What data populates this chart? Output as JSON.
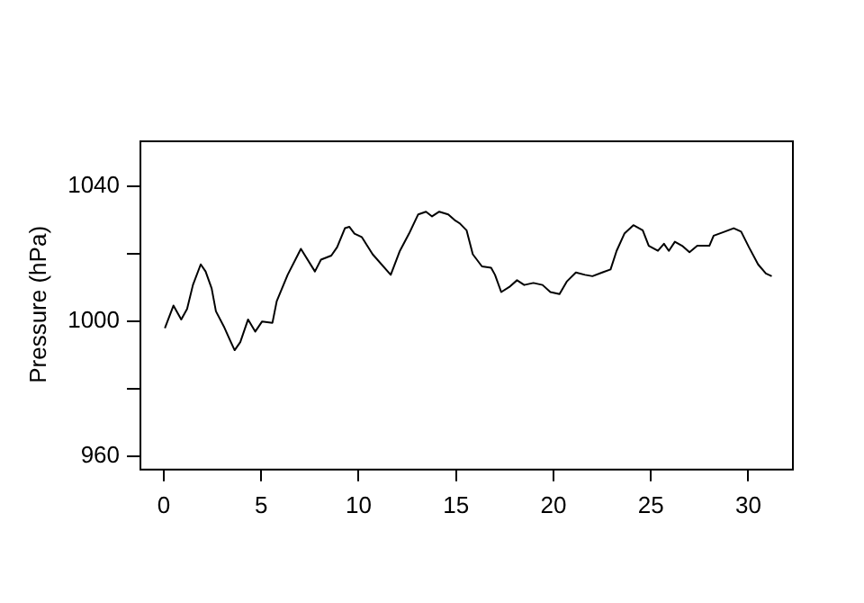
{
  "chart_data": {
    "type": "line",
    "ylabel": "Pressure (hPa)",
    "x": [
      0.06,
      0.5,
      0.9,
      1.2,
      1.5,
      1.9,
      2.15,
      2.46,
      2.68,
      3.08,
      3.4,
      3.64,
      3.93,
      4.33,
      4.7,
      5.05,
      5.58,
      5.8,
      6.36,
      7.04,
      7.76,
      8.07,
      8.6,
      8.9,
      9.3,
      9.53,
      9.79,
      10.16,
      10.72,
      11.65,
      12.12,
      12.59,
      13.06,
      13.46,
      13.77,
      14.14,
      14.6,
      14.93,
      15.2,
      15.54,
      15.86,
      16.33,
      16.8,
      17.0,
      17.32,
      17.73,
      18.13,
      18.5,
      18.97,
      19.44,
      19.84,
      20.31,
      20.68,
      21.15,
      21.62,
      22.0,
      22.5,
      22.93,
      23.24,
      23.64,
      24.1,
      24.58,
      24.89,
      25.36,
      25.67,
      25.92,
      26.23,
      26.6,
      26.98,
      27.38,
      28.0,
      28.22,
      28.79,
      29.25,
      29.63,
      30.03,
      30.5,
      30.9,
      31.2
    ],
    "series": [
      {
        "color": "#000000",
        "values": [
          998,
          1004.7,
          1000.6,
          1003.7,
          1010.8,
          1016.9,
          1014.8,
          1009.8,
          1003,
          998.6,
          994.5,
          991.5,
          993.9,
          1000.6,
          997,
          1000,
          999.6,
          1006,
          1013.8,
          1021.5,
          1014.8,
          1018.3,
          1019.5,
          1022,
          1027.6,
          1028,
          1026,
          1025,
          1019.9,
          1013.8,
          1020.9,
          1026,
          1031.7,
          1032.5,
          1031.1,
          1032.5,
          1031.7,
          1030,
          1029,
          1027,
          1019.9,
          1016.3,
          1015.9,
          1013.8,
          1008.7,
          1010.2,
          1012.2,
          1010.8,
          1011.4,
          1010.8,
          1008.7,
          1008.1,
          1011.8,
          1014.5,
          1013.8,
          1013.4,
          1014.5,
          1015.4,
          1020.9,
          1026,
          1028.5,
          1027,
          1022.4,
          1020.9,
          1023,
          1020.9,
          1023.6,
          1022.4,
          1020.5,
          1022.4,
          1022.4,
          1025.4,
          1026.6,
          1027.6,
          1026.6,
          1022,
          1016.9,
          1014.2,
          1013.4
        ]
      }
    ],
    "xlim": [
      -1.24,
      32.24
    ],
    "xticks": [
      0,
      5,
      10,
      15,
      20,
      25,
      30
    ],
    "ylim": [
      956.4,
      1053.6
    ],
    "yticks": [
      960,
      {
        "value": 980,
        "label": null
      },
      1000,
      {
        "value": 1020,
        "label": null
      },
      1040
    ],
    "grid": false,
    "legend": false,
    "marker": "none",
    "line_style": "solid"
  }
}
